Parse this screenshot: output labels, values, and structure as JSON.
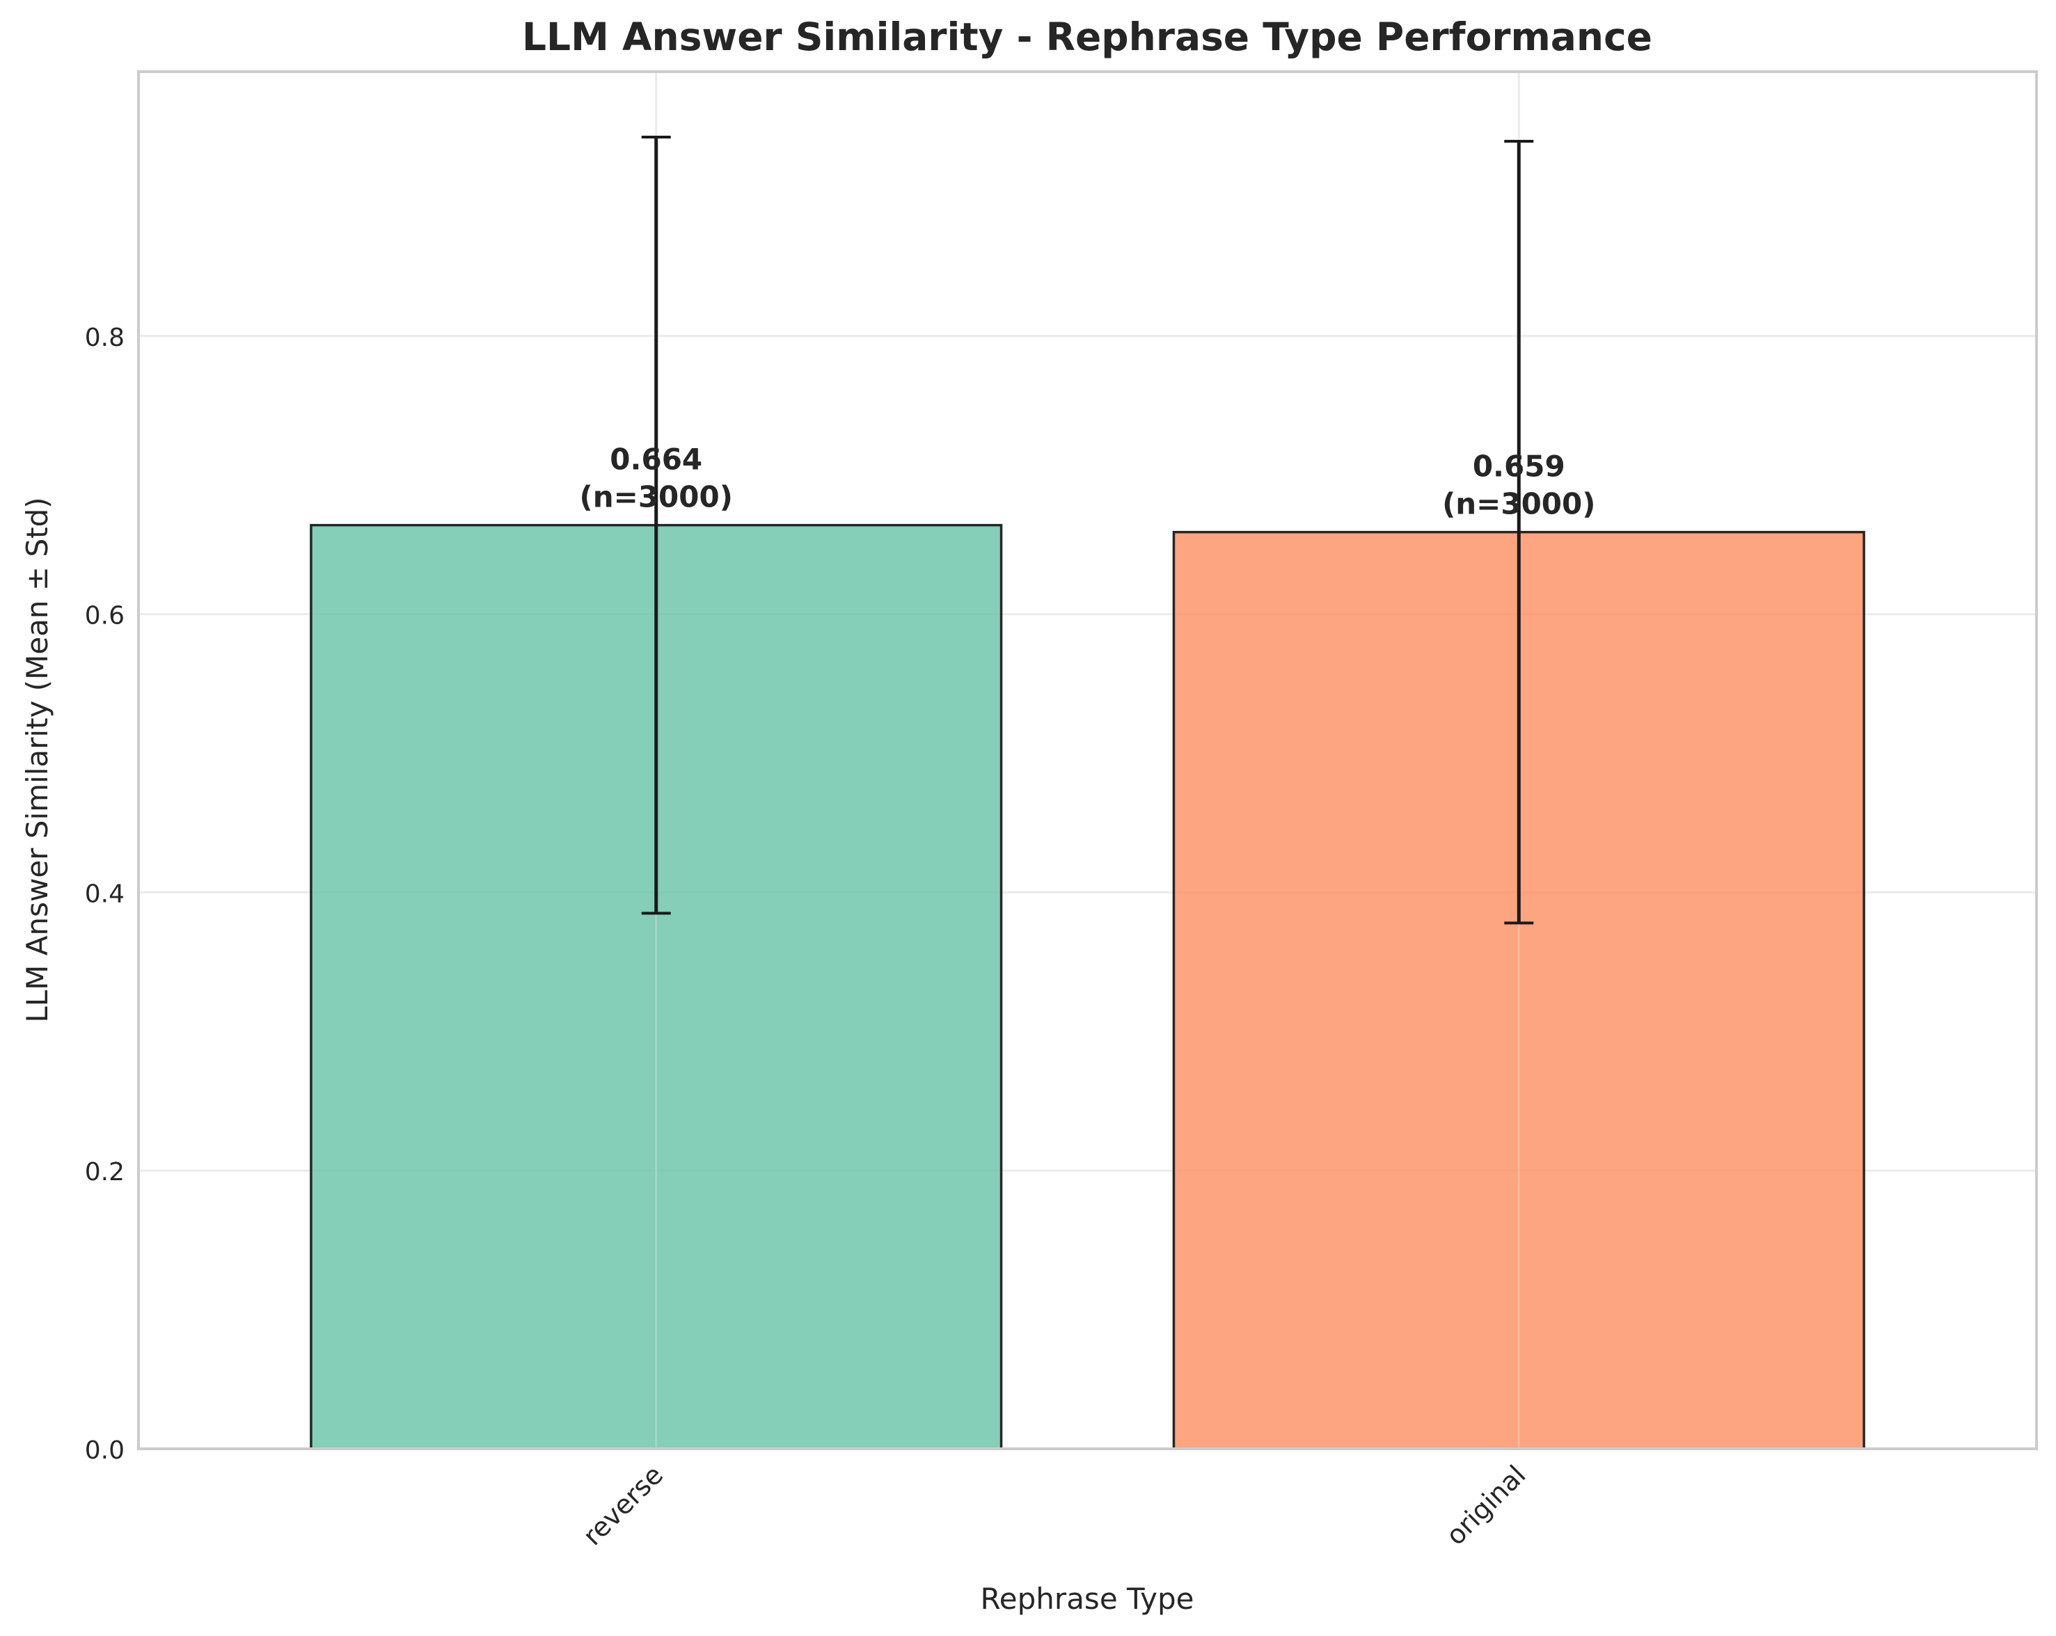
{
  "chart_data": {
    "type": "bar",
    "title": "LLM Answer Similarity - Rephrase Type Performance",
    "xlabel": "Rephrase Type",
    "ylabel": "LLM Answer Similarity (Mean ± Std)",
    "categories": [
      "reverse",
      "original"
    ],
    "values": [
      0.664,
      0.659
    ],
    "std": [
      0.279,
      0.281
    ],
    "n": [
      3000,
      3000
    ],
    "value_labels": [
      "0.664",
      "0.659"
    ],
    "n_labels": [
      "(n=3000)",
      "(n=3000)"
    ],
    "colors": [
      "#66c2a5",
      "#fc8d62"
    ],
    "ylim": [
      0,
      0.99
    ],
    "yticks": [
      0.0,
      0.2,
      0.4,
      0.6,
      0.8
    ],
    "ytick_labels": [
      "0.0",
      "0.2",
      "0.4",
      "0.6",
      "0.8"
    ],
    "grid": true,
    "legend": "none"
  }
}
